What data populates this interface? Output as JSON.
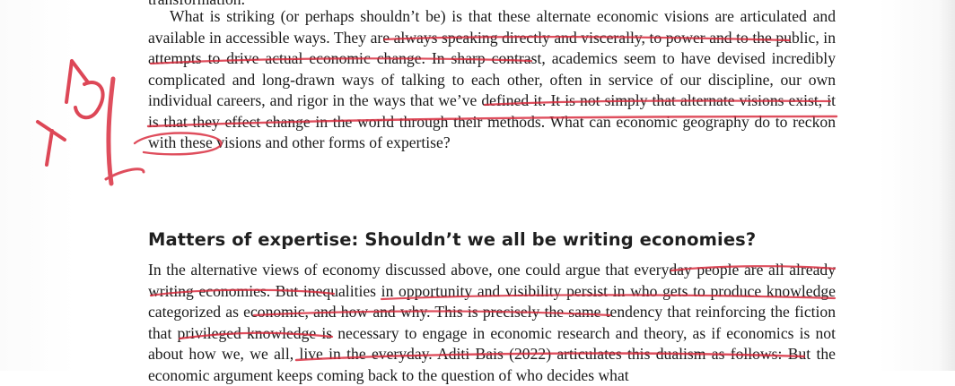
{
  "document": {
    "cutoff_line": "transformation.",
    "paragraph1": "What is striking (or perhaps shouldn’t be) is that these alternate economic visions are articulated and available in accessible ways. They are always speaking directly and viscerally, to power and to the public, in attempts to drive actual economic change. In sharp contrast, academics seem to have devised incredibly complicated and long-drawn ways of talking to each other, often in service of our discipline, our own individual careers, and rigor in the ways that we’ve defined it. It is not simply that alternate visions exist, it is that they effect change in the world through their methods. What can economic geography do to reckon with these visions and other forms of expertise?",
    "heading": "Matters of expertise: Shouldn’t we all be writing economies?",
    "paragraph2": "In the alternative views of economy discussed above, one could argue that everyday people are all already writing economies. But inequalities in opportunity and visibility persist in who gets to produce knowledge categorized as economic, and how and why. This is precisely the same tendency that reinforcing the fiction that privileged knowledge is necessary to engage in economic research and theory, as if economics is not about how we, we all, live in the everyday. Aditi Bais (2022) articulates this dualism as follows: But the economic argument keeps coming back to the question of who decides what"
  },
  "annotations": {
    "ink_color": "#d8283a",
    "margin_note": "YES"
  }
}
